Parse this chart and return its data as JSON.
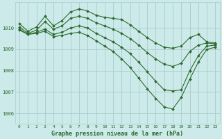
{
  "title": "Graphe pression niveau de la mer (hPa)",
  "background_color": "#cceaea",
  "grid_color": "#aacccc",
  "line_color": "#2d6a2d",
  "xlim_min": -0.5,
  "xlim_max": 23.5,
  "ylim_min": 1005.5,
  "ylim_max": 1011.2,
  "yticks": [
    1006,
    1007,
    1008,
    1009,
    1010
  ],
  "xticks": [
    0,
    1,
    2,
    3,
    4,
    5,
    6,
    7,
    8,
    9,
    10,
    11,
    12,
    13,
    14,
    15,
    16,
    17,
    18,
    19,
    20,
    21,
    22,
    23
  ],
  "series": [
    {
      "x": [
        0,
        1,
        2,
        3,
        4,
        5,
        6,
        7,
        8,
        9,
        10,
        11,
        12,
        13,
        14,
        15,
        16,
        17,
        18,
        19,
        20,
        21,
        22,
        23
      ],
      "y": [
        1010.2,
        1009.85,
        1010.05,
        1010.55,
        1010.1,
        1010.35,
        1010.75,
        1010.9,
        1010.8,
        1010.6,
        1010.5,
        1010.45,
        1010.4,
        1010.15,
        1009.85,
        1009.55,
        1009.3,
        1009.1,
        1009.05,
        1009.15,
        1009.55,
        1009.7,
        1009.35,
        1009.3
      ]
    },
    {
      "x": [
        0,
        1,
        2,
        3,
        4,
        5,
        6,
        7,
        8,
        9,
        10,
        11,
        12,
        13,
        14,
        15,
        16,
        17,
        18,
        19,
        20,
        21,
        22,
        23
      ],
      "y": [
        1010.05,
        1009.75,
        1009.9,
        1010.3,
        1009.95,
        1010.1,
        1010.45,
        1010.55,
        1010.45,
        1010.25,
        1010.1,
        1009.95,
        1009.75,
        1009.5,
        1009.2,
        1008.85,
        1008.55,
        1008.3,
        1008.2,
        1008.35,
        1008.9,
        1009.2,
        1009.3,
        1009.25
      ]
    },
    {
      "x": [
        0,
        1,
        2,
        3,
        4,
        5,
        6,
        7,
        8,
        9,
        10,
        11,
        12,
        13,
        14,
        15,
        16,
        17,
        18,
        19,
        20,
        21,
        22,
        23
      ],
      "y": [
        1009.95,
        1009.7,
        1009.8,
        1009.95,
        1009.7,
        1009.8,
        1010.0,
        1010.1,
        1010.0,
        1009.75,
        1009.55,
        1009.35,
        1009.1,
        1008.8,
        1008.4,
        1007.95,
        1007.5,
        1007.1,
        1007.05,
        1007.1,
        1008.0,
        1008.7,
        1009.15,
        1009.2
      ]
    },
    {
      "x": [
        0,
        1,
        2,
        3,
        4,
        5,
        6,
        7,
        8,
        9,
        10,
        11,
        12,
        13,
        14,
        15,
        16,
        17,
        18,
        19,
        20,
        21,
        22,
        23
      ],
      "y": [
        1009.9,
        1009.7,
        1009.75,
        1009.85,
        1009.6,
        1009.65,
        1009.75,
        1009.8,
        1009.65,
        1009.4,
        1009.15,
        1008.9,
        1008.55,
        1008.15,
        1007.65,
        1007.15,
        1006.7,
        1006.3,
        1006.2,
        1006.75,
        1007.6,
        1008.4,
        1009.0,
        1009.1
      ]
    }
  ]
}
